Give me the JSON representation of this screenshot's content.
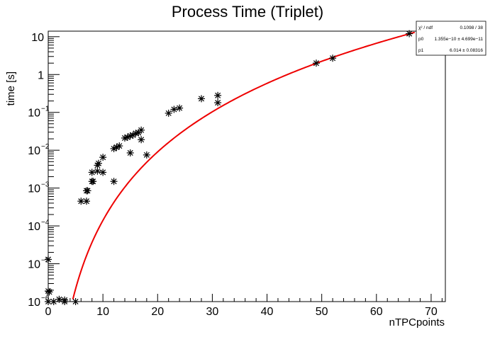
{
  "chart_data": {
    "type": "scatter",
    "title": "Process Time (Triplet)",
    "xlabel": "nTPCpoints",
    "ylabel": "time [s]",
    "xlim": [
      0,
      72.6
    ],
    "ylim": [
      1e-06,
      14
    ],
    "y_scale": "log",
    "grid": false,
    "x_ticks": [
      {
        "value": 0,
        "label": "0"
      },
      {
        "value": 10,
        "label": "10"
      },
      {
        "value": 20,
        "label": "20"
      },
      {
        "value": 30,
        "label": "30"
      },
      {
        "value": 40,
        "label": "40"
      },
      {
        "value": 50,
        "label": "50"
      },
      {
        "value": 60,
        "label": "60"
      },
      {
        "value": 70,
        "label": "70"
      }
    ],
    "y_ticks": [
      {
        "value": 1e-06,
        "base": "10",
        "exp": "−6"
      },
      {
        "value": 1e-05,
        "base": "10",
        "exp": "−5"
      },
      {
        "value": 0.0001,
        "base": "10",
        "exp": "−4"
      },
      {
        "value": 0.001,
        "base": "10",
        "exp": "−3"
      },
      {
        "value": 0.01,
        "base": "10",
        "exp": "−2"
      },
      {
        "value": 0.1,
        "base": "10",
        "exp": "−1"
      },
      {
        "value": 1,
        "base": "1",
        "exp": ""
      },
      {
        "value": 10,
        "base": "10",
        "exp": ""
      }
    ],
    "series": [
      {
        "marker": "asterisk",
        "color": "#000000",
        "points": [
          [
            0,
            1.3e-05
          ],
          [
            0,
            1.9e-06
          ],
          [
            0.2,
            1.8e-06
          ],
          [
            0,
            1e-06
          ],
          [
            1,
            1e-06
          ],
          [
            2,
            1.15e-06
          ],
          [
            3,
            1.1e-06
          ],
          [
            3,
            1e-06
          ],
          [
            5,
            1e-06
          ],
          [
            6,
            0.00045
          ],
          [
            7,
            0.00045
          ],
          [
            7,
            0.00085
          ],
          [
            7.2,
            0.00085
          ],
          [
            8,
            0.0015
          ],
          [
            8.2,
            0.0015
          ],
          [
            8,
            0.0026
          ],
          [
            9,
            0.0028
          ],
          [
            9,
            0.004
          ],
          [
            9.2,
            0.0045
          ],
          [
            10,
            0.0026
          ],
          [
            10,
            0.0065
          ],
          [
            12,
            0.0015
          ],
          [
            12,
            0.011
          ],
          [
            12.5,
            0.012
          ],
          [
            13,
            0.013
          ],
          [
            14,
            0.021
          ],
          [
            14.5,
            0.022
          ],
          [
            15,
            0.024
          ],
          [
            15,
            0.0085
          ],
          [
            15.5,
            0.025
          ],
          [
            16,
            0.028
          ],
          [
            16.5,
            0.029
          ],
          [
            17,
            0.034
          ],
          [
            17,
            0.019
          ],
          [
            18,
            0.0075
          ],
          [
            22,
            0.095
          ],
          [
            23,
            0.12
          ],
          [
            24,
            0.13
          ],
          [
            28,
            0.23
          ],
          [
            31,
            0.28
          ],
          [
            31,
            0.18
          ],
          [
            49,
            2.0
          ],
          [
            52,
            2.7
          ],
          [
            66,
            12
          ]
        ]
      },
      {
        "type": "line",
        "color": "#ee0000",
        "model": "p0*x^p1",
        "x_range": [
          4.5,
          67
        ],
        "params": {
          "p0": 1.355e-10,
          "p1": 6.014
        }
      }
    ],
    "stats_box": {
      "position": "top-right",
      "rows": [
        {
          "label": "χ² / ndf",
          "value": "0.1098 / 38"
        },
        {
          "label": "p0",
          "value": "1.355e−10 ± 4.699e−11"
        },
        {
          "label": "p1",
          "value": "6.014 ± 0.08316"
        }
      ]
    }
  }
}
